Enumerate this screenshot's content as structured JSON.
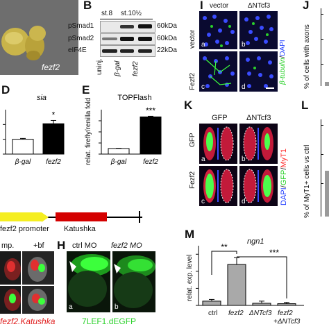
{
  "panels": {
    "B": {
      "label": "B",
      "stage1": "st.8",
      "stage2": "st.10½",
      "bands": [
        {
          "name": "pSmad1",
          "size": "60kDa"
        },
        {
          "name": "pSmad2",
          "size": "60kDa"
        },
        {
          "name": "eIF4E",
          "size": "22kDa"
        }
      ],
      "lanes": [
        "uninj.",
        "β-gal",
        "fezf2"
      ]
    },
    "A": {
      "caption": "fezf2"
    },
    "I": {
      "label": "I",
      "col1": "vector",
      "col2": "ΔNTcf3",
      "row1": "vector",
      "row2": "Fezf2",
      "stain1": "β-tubulin",
      "stain_sep": "/",
      "stain2": "DAPI",
      "subs": [
        "a",
        "b",
        "c",
        "d"
      ]
    },
    "J": {
      "label": "J",
      "ylabel": "% of cells with axons"
    },
    "D": {
      "label": "D",
      "title": "sia",
      "sig": "*"
    },
    "E": {
      "label": "E",
      "title": "TOPFlash",
      "ylabel": "relat. firefly/renilla fold",
      "sig": "***"
    },
    "K": {
      "label": "K",
      "col1": "GFP",
      "col2": "ΔNTcf3",
      "row1": "GFP",
      "row2": "Fezf2",
      "stain1": "DAPI",
      "stain2": "GFP",
      "stain3": "MyT1",
      "sep": "/",
      "subs": [
        "a",
        "b",
        "c",
        "d"
      ]
    },
    "L": {
      "label": "L",
      "ylabel": "% of MyT1+ cells vs ctrl"
    },
    "construct": {
      "promoter": "fezf2 promoter",
      "reporter": "Katushka"
    },
    "G": {
      "col1": "mp.",
      "col2": "+bf",
      "caption": "fezf2.Katushka"
    },
    "H": {
      "label": "H",
      "col1": "ctrl MO",
      "col2": "fezf2 MO",
      "caption": "7LEF1.dEGFP",
      "subs": [
        "a",
        "b"
      ]
    },
    "M": {
      "label": "M",
      "title": "ngn1",
      "ylabel": "relat. exp. level",
      "sig1": "**",
      "sig2": "***",
      "xlabels": [
        "ctrl",
        "fezf2",
        "ΔNTcf3",
        "fezf2",
        "+ΔNTcf3"
      ]
    }
  },
  "chart_data": [
    {
      "type": "bar",
      "title": "sia",
      "categories": [
        "β-gal",
        "fezf2"
      ],
      "values": [
        2.0,
        4.1
      ],
      "errors": [
        0.12,
        0.45
      ],
      "colors": [
        "#ffffff",
        "#000000"
      ],
      "ylim": [
        0,
        6
      ]
    },
    {
      "type": "bar",
      "title": "TOPFlash",
      "ylabel": "relat. firefly/renilla fold",
      "categories": [
        "β-gal",
        "fezf2"
      ],
      "values": [
        1.0,
        6.7
      ],
      "errors": [
        0.05,
        0.12
      ],
      "colors": [
        "#ffffff",
        "#000000"
      ],
      "ylim": [
        0,
        8
      ]
    },
    {
      "type": "bar",
      "title": "ngn1",
      "ylabel": "relat. exp. level",
      "categories": [
        "ctrl",
        "fezf2",
        "ΔNTcf3",
        "fezf2 +ΔNTcf3"
      ],
      "values": [
        1.0,
        9.6,
        0.5,
        0.4
      ],
      "errors": [
        0.4,
        1.6,
        0.5,
        0.3
      ],
      "colors": [
        "#a9a9a9",
        "#a9a9a9",
        "#a9a9a9",
        "#a9a9a9"
      ],
      "ylim": [
        0,
        14
      ]
    }
  ],
  "colors": {
    "green": "#3cff3c",
    "red": "#ff2a2a",
    "blue": "#3a4cff",
    "yellow": "#f5ee20",
    "construct_red": "#d40000",
    "bar_gray": "#a9a9a9"
  }
}
